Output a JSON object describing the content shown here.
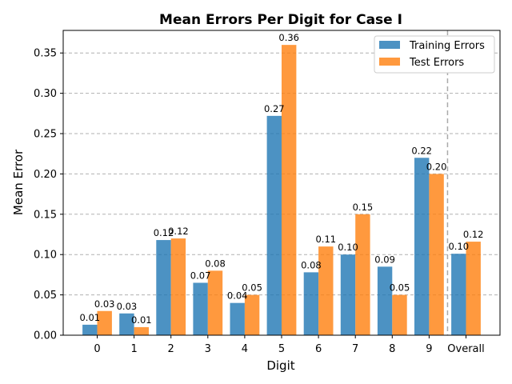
{
  "chart_data": {
    "type": "bar",
    "title": "Mean Errors Per Digit for Case I",
    "xlabel": "Digit",
    "ylabel": "Mean Error",
    "categories": [
      "0",
      "1",
      "2",
      "3",
      "4",
      "5",
      "6",
      "7",
      "8",
      "9",
      "Overall"
    ],
    "series": [
      {
        "name": "Training Errors",
        "color": "#1f77b4",
        "values": [
          0.013,
          0.027,
          0.118,
          0.065,
          0.04,
          0.272,
          0.078,
          0.1,
          0.085,
          0.22,
          0.101
        ],
        "labels": [
          "0.01",
          "0.03",
          "0.12",
          "0.07",
          "0.04",
          "0.27",
          "0.08",
          "0.10",
          "0.09",
          "0.22",
          "0.10"
        ]
      },
      {
        "name": "Test Errors",
        "color": "#ff7f0e",
        "values": [
          0.03,
          0.01,
          0.12,
          0.08,
          0.05,
          0.36,
          0.11,
          0.15,
          0.05,
          0.2,
          0.116
        ],
        "labels": [
          "0.03",
          "0.01",
          "0.12",
          "0.08",
          "0.05",
          "0.36",
          "0.11",
          "0.15",
          "0.05",
          "0.20",
          "0.12"
        ]
      }
    ],
    "ylim": [
      0,
      0.378
    ],
    "yticks": [
      "0.00",
      "0.05",
      "0.10",
      "0.15",
      "0.20",
      "0.25",
      "0.30",
      "0.35"
    ],
    "grid": "y-dashed",
    "legend_position": "top-right",
    "separator_before": "Overall"
  }
}
